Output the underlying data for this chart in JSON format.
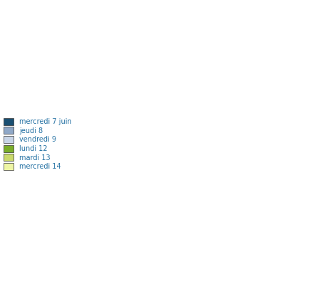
{
  "legend_entries": [
    {
      "label": "mercredi 7 juin",
      "color": "#1a4f72"
    },
    {
      "label": "jeudi 8",
      "color": "#8fa8c8"
    },
    {
      "label": "vendredi 9",
      "color": "#c8d5e8"
    },
    {
      "label": "lundi 12",
      "color": "#7aad2a"
    },
    {
      "label": "mardi 13",
      "color": "#cad96b"
    },
    {
      "label": "mercredi 14",
      "color": "#eef5a5"
    }
  ],
  "legend_text_color": "#2471a3",
  "background_color": "#ffffff",
  "border_color": "#666666",
  "figsize": [
    4.58,
    4.23
  ],
  "dpi": 100,
  "xlim": [
    -25,
    45
  ],
  "ylim": [
    34,
    72
  ],
  "country_colors": {
    "France": 0,
    "Germany": 0,
    "Netherlands": 0,
    "Belgium": 0,
    "Luxembourg": 0,
    "Switzerland": 3,
    "United Kingdom": 1,
    "Ireland": 1,
    "Spain": 1,
    "Italy": 1,
    "Austria": 1,
    "Czech Republic": 1,
    "Czechia": 1,
    "Slovakia": 1,
    "Hungary": 1,
    "Denmark": 1,
    "Poland": 1,
    "Slovenia": 1,
    "Croatia": 1,
    "Portugal": 2,
    "Romania": 2,
    "Bulgaria": 2,
    "Serbia": 2,
    "Bosnia and Herzegovina": 2,
    "North Macedonia": 2,
    "Albania": 2,
    "Montenegro": 2,
    "Kosovo": 2,
    "Moldova": 2,
    "Ukraine": 2,
    "Belarus": 2,
    "Norway": 4,
    "Sweden": 4,
    "Finland": 5,
    "Estonia": 5,
    "Latvia": 5,
    "Lithuania": 5,
    "Russia": 5,
    "Iceland": 4,
    "Greece": 4,
    "Cyprus": 2,
    "Malta": 2
  }
}
